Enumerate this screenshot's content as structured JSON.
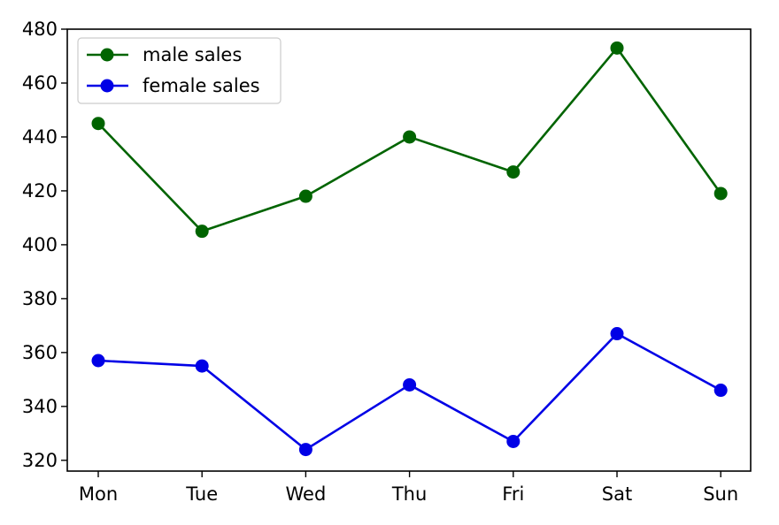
{
  "chart_data": {
    "type": "line",
    "title": "",
    "xlabel": "",
    "ylabel": "",
    "categories": [
      "Mon",
      "Tue",
      "Wed",
      "Thu",
      "Fri",
      "Sat",
      "Sun"
    ],
    "series": [
      {
        "name": "male sales",
        "color": "#006400",
        "values": [
          445,
          405,
          418,
          440,
          427,
          473,
          419
        ]
      },
      {
        "name": "female sales",
        "color": "#0000e6",
        "values": [
          357,
          355,
          324,
          348,
          327,
          367,
          346
        ]
      }
    ],
    "ylim": [
      316,
      480
    ],
    "yticks": [
      320,
      340,
      360,
      380,
      400,
      420,
      440,
      460,
      480
    ],
    "grid": false,
    "legend": "top-left",
    "marker": "circle"
  }
}
